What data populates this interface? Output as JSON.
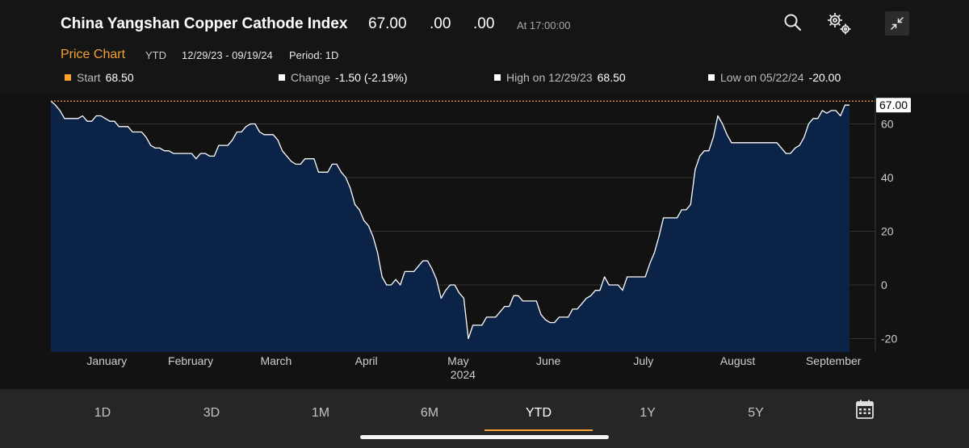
{
  "header": {
    "title": "China Yangshan Copper Cathode Index",
    "last_price": "67.00",
    "change": ".00",
    "change_pct": ".00",
    "as_of": "At 17:00:00"
  },
  "icons": {
    "search": "search-icon",
    "settings": "gear-icon",
    "collapse": "collapse-icon",
    "calendar": "calendar-icon"
  },
  "subheader": {
    "title": "Price Chart",
    "range": "YTD",
    "dates": "12/29/23 - 09/19/24",
    "period": "Period: 1D"
  },
  "stats": {
    "start": {
      "label": "Start",
      "value": "68.50",
      "color": "#f4a236"
    },
    "change": {
      "label": "Change",
      "value": "-1.50 (-2.19%)",
      "color": "#ffffff"
    },
    "high": {
      "label": "High on 12/29/23",
      "value": "68.50",
      "color": "#ffffff"
    },
    "low": {
      "label": "Low on 05/22/24",
      "value": "-20.00",
      "color": "#ffffff"
    }
  },
  "colors": {
    "accent": "#f4a236",
    "area_fill": "#0b2347",
    "line": "#ffffff",
    "grid": "#333333",
    "background": "#121212"
  },
  "chart_data": {
    "type": "area",
    "x_unit": "date",
    "series": [
      {
        "values": [
          68.5,
          67,
          65,
          62,
          62,
          62,
          62,
          63,
          61,
          61,
          63,
          63,
          62,
          61,
          61,
          59,
          59,
          59,
          57,
          57,
          57,
          55,
          52,
          51,
          51,
          50,
          50,
          49,
          49,
          49,
          49,
          49,
          47,
          49,
          49,
          48,
          48,
          52,
          52,
          52,
          54,
          57,
          57,
          59,
          60,
          60,
          57,
          56,
          56,
          56,
          54,
          50,
          48,
          46,
          45,
          45,
          47,
          47,
          47,
          42,
          42,
          42,
          45,
          45,
          42,
          40,
          36,
          30,
          28,
          24,
          22,
          18,
          12,
          3,
          0,
          0,
          2,
          0,
          5,
          5,
          5,
          7,
          9,
          9,
          6,
          2,
          -5,
          -2,
          0,
          0,
          -3,
          -5,
          -20,
          -15,
          -15,
          -15,
          -12,
          -12,
          -12,
          -10,
          -8,
          -8,
          -4,
          -4,
          -6,
          -6,
          -6,
          -6,
          -11,
          -13,
          -14,
          -14,
          -12,
          -12,
          -12,
          -9,
          -9,
          -7,
          -5,
          -4,
          -2,
          -2,
          3,
          0,
          0,
          0,
          -2,
          3,
          3,
          3,
          3,
          3,
          8,
          12,
          18,
          25,
          25,
          25,
          25,
          28,
          28,
          30,
          43,
          48,
          50,
          50,
          55,
          63,
          60,
          56,
          53,
          53,
          53,
          53,
          53,
          53,
          53,
          53,
          53,
          53,
          53,
          51,
          49,
          49,
          51,
          52,
          55,
          60,
          62,
          62,
          65,
          64,
          65,
          65,
          63,
          67,
          67
        ]
      }
    ],
    "last_value_label": "67.00",
    "reference_line": {
      "value": 68.5,
      "label": "Start"
    },
    "ylim": [
      -25,
      70
    ],
    "yticks": [
      60,
      40,
      20,
      0,
      -20
    ],
    "ytick_labels": [
      "60",
      "40",
      "20",
      "0",
      "-20"
    ],
    "x_month_labels": [
      "January",
      "February",
      "March",
      "April",
      "May",
      "June",
      "July",
      "August",
      "September"
    ],
    "x_year_label": "2024",
    "grid": true,
    "axis_side": "right"
  },
  "tabs": [
    {
      "label": "1D"
    },
    {
      "label": "3D"
    },
    {
      "label": "1M"
    },
    {
      "label": "6M"
    },
    {
      "label": "YTD",
      "active": true
    },
    {
      "label": "1Y"
    },
    {
      "label": "5Y"
    }
  ]
}
